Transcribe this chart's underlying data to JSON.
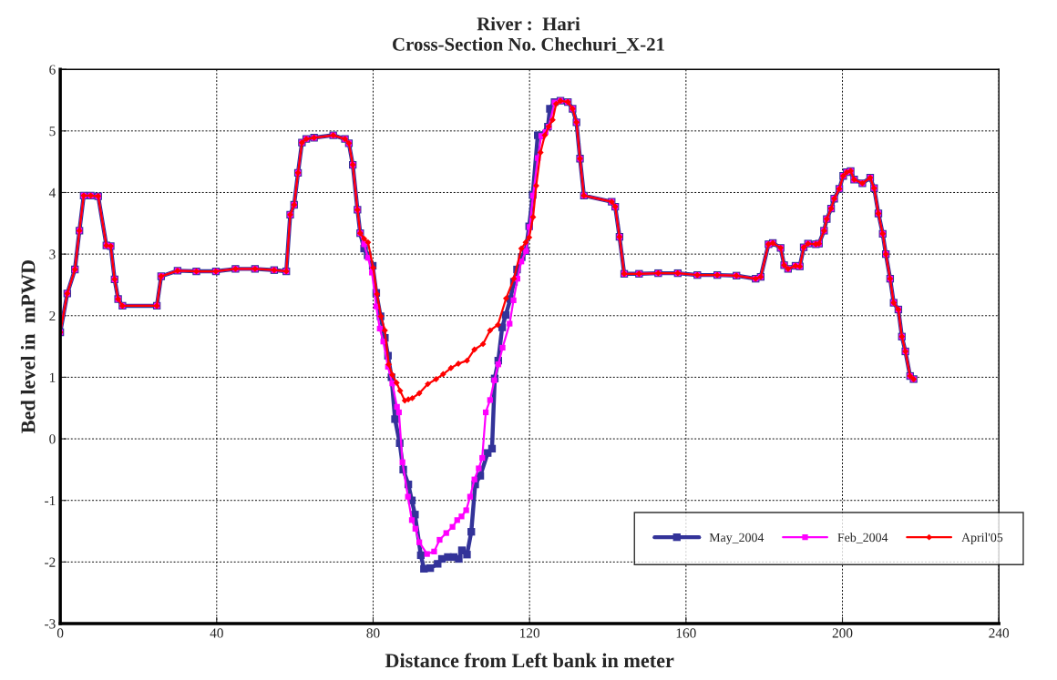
{
  "chart_data": {
    "type": "line",
    "title": "River :  Hari",
    "subtitle": "Cross-Section No. Chechuri_X-21",
    "xlabel": "Distance from Left bank in meter",
    "ylabel": "Bed level in  mPWD",
    "xlim": [
      0,
      240
    ],
    "xticks": [
      0,
      40,
      80,
      120,
      160,
      200,
      240
    ],
    "ylim": [
      -3,
      6
    ],
    "yticks": [
      -3,
      -2,
      -1,
      0,
      1,
      2,
      3,
      4,
      5,
      6
    ],
    "grid": true,
    "legend": "bottom right",
    "series": [
      {
        "name": "May_2004",
        "color": "#333399",
        "marker": "square",
        "x": [
          0,
          1.8,
          3.75,
          4.9,
          6.0,
          7.8,
          9.7,
          11.8,
          12.9,
          13.9,
          14.8,
          15.9,
          24.7,
          25.8,
          30.0,
          34.8,
          39.8,
          44.8,
          49.8,
          54.7,
          57.8,
          58.8,
          59.8,
          60.8,
          61.8,
          62.9,
          64.9,
          69.8,
          72.8,
          73.8,
          74.8,
          76.0,
          76.7,
          77.7,
          78.6,
          79.9,
          80.8,
          81.9,
          83.0,
          83.8,
          84.7,
          85.6,
          86.8,
          87.7,
          89.0,
          89.9,
          90.7,
          92.2,
          93.0,
          94.6,
          96.5,
          97.6,
          99.1,
          100.6,
          101.9,
          102.7,
          104.0,
          105.1,
          106.1,
          107.4,
          109.3,
          110.4,
          111.1,
          112.0,
          113.0,
          113.9,
          115.1,
          116.0,
          116.8,
          118.0,
          119.0,
          119.9,
          120.8,
          122.1,
          123.0,
          124.7,
          125.2,
          126.4,
          127.9,
          129.8,
          131.0,
          132.0,
          132.9,
          133.9,
          141.0,
          141.9,
          143.0,
          144.2,
          148.0,
          152.9,
          157.9,
          162.9,
          168.0,
          172.9,
          177.8,
          179.1,
          181.1,
          182.2,
          184.2,
          185.1,
          186.1,
          188.0,
          189.1,
          190.1,
          191.2,
          193.2,
          194.0,
          195.3,
          196.0,
          197.1,
          197.9,
          199.2,
          200.2,
          201.1,
          202.1,
          203.0,
          205.1,
          207.1,
          208.1,
          209.2,
          210.3,
          211.1,
          212.2,
          213.1,
          214.3,
          215.2,
          216.1,
          217.3,
          218.2
        ],
        "values": [
          1.73,
          2.36,
          2.75,
          3.38,
          3.95,
          3.95,
          3.94,
          3.14,
          3.13,
          2.59,
          2.27,
          2.16,
          2.16,
          2.64,
          2.73,
          2.72,
          2.72,
          2.76,
          2.76,
          2.74,
          2.72,
          3.64,
          3.8,
          4.32,
          4.81,
          4.87,
          4.89,
          4.93,
          4.87,
          4.8,
          4.45,
          3.72,
          3.34,
          3.09,
          2.98,
          2.81,
          2.37,
          1.99,
          1.64,
          1.35,
          1.0,
          0.32,
          -0.07,
          -0.5,
          -0.74,
          -1.0,
          -1.23,
          -1.89,
          -2.11,
          -2.1,
          -2.03,
          -1.95,
          -1.92,
          -1.92,
          -1.95,
          -1.81,
          -1.88,
          -1.51,
          -0.74,
          -0.6,
          -0.23,
          -0.16,
          0.98,
          1.27,
          1.81,
          2.01,
          2.27,
          2.55,
          2.75,
          2.95,
          3.05,
          3.45,
          3.96,
          4.93,
          4.93,
          5.07,
          5.36,
          5.47,
          5.49,
          5.47,
          5.36,
          5.14,
          4.55,
          3.95,
          3.85,
          3.77,
          3.28,
          2.68,
          2.68,
          2.69,
          2.69,
          2.66,
          2.66,
          2.65,
          2.6,
          2.63,
          3.16,
          3.18,
          3.1,
          2.82,
          2.76,
          2.81,
          2.8,
          3.11,
          3.17,
          3.16,
          3.17,
          3.38,
          3.57,
          3.74,
          3.9,
          4.06,
          4.27,
          4.33,
          4.35,
          4.21,
          4.15,
          4.24,
          4.07,
          3.66,
          3.33,
          3.0,
          2.6,
          2.21,
          2.1,
          1.66,
          1.42,
          1.02,
          0.97
        ]
      },
      {
        "name": "Feb_2004",
        "color": "#ff00ff",
        "marker": "square",
        "x": [
          0,
          1.8,
          3.75,
          4.9,
          6.0,
          7.8,
          9.7,
          11.8,
          12.9,
          13.9,
          14.8,
          15.9,
          24.7,
          25.8,
          30.0,
          34.8,
          39.8,
          44.8,
          49.8,
          54.7,
          57.8,
          58.8,
          59.8,
          60.8,
          61.8,
          62.9,
          64.9,
          69.8,
          72.8,
          73.8,
          74.8,
          76.0,
          76.7,
          77.7,
          78.7,
          79.7,
          80.8,
          81.7,
          82.6,
          83.8,
          84.9,
          86.1,
          86.6,
          87.5,
          88.9,
          89.9,
          90.8,
          91.8,
          93.8,
          95.6,
          97.0,
          98.7,
          100.3,
          101.5,
          102.6,
          103.8,
          104.8,
          105.9,
          107.0,
          107.9,
          108.8,
          109.9,
          111.0,
          112.0,
          113.1,
          114.9,
          115.9,
          116.9,
          117.9,
          119.1,
          120.0,
          120.9,
          122.1,
          123.0,
          124.1,
          124.9,
          126.4,
          127.9,
          129.8,
          131.0,
          132.0,
          132.9,
          133.9,
          141.0,
          141.9,
          143.0,
          144.2,
          148.0,
          152.9,
          157.9,
          162.9,
          168.0,
          172.9,
          177.8,
          179.1,
          181.1,
          182.2,
          184.2,
          185.1,
          186.1,
          188.0,
          189.1,
          190.1,
          191.2,
          193.2,
          194.0,
          195.3,
          196.0,
          197.1,
          197.9,
          199.2,
          200.2,
          201.1,
          202.1,
          203.0,
          205.1,
          207.1,
          208.1,
          209.2,
          210.3,
          211.1,
          212.2,
          213.1,
          214.3,
          215.2,
          216.1,
          217.3,
          218.2
        ],
        "values": [
          1.73,
          2.36,
          2.75,
          3.38,
          3.95,
          3.95,
          3.94,
          3.14,
          3.13,
          2.59,
          2.27,
          2.16,
          2.16,
          2.64,
          2.73,
          2.72,
          2.72,
          2.76,
          2.76,
          2.74,
          2.72,
          3.64,
          3.8,
          4.32,
          4.81,
          4.87,
          4.89,
          4.93,
          4.87,
          4.8,
          4.45,
          3.72,
          3.34,
          3.16,
          2.94,
          2.7,
          2.15,
          1.79,
          1.58,
          1.17,
          0.9,
          0.52,
          0.43,
          -0.38,
          -0.94,
          -1.32,
          -1.46,
          -1.68,
          -1.87,
          -1.83,
          -1.64,
          -1.53,
          -1.43,
          -1.32,
          -1.26,
          -1.16,
          -0.94,
          -0.66,
          -0.48,
          -0.31,
          0.43,
          0.63,
          0.95,
          1.21,
          1.48,
          1.87,
          2.25,
          2.6,
          2.88,
          3.05,
          3.44,
          3.95,
          4.56,
          4.92,
          4.98,
          5.07,
          5.46,
          5.49,
          5.47,
          5.36,
          5.14,
          4.55,
          3.95,
          3.85,
          3.77,
          3.28,
          2.68,
          2.68,
          2.69,
          2.69,
          2.66,
          2.66,
          2.65,
          2.6,
          2.63,
          3.16,
          3.18,
          3.1,
          2.82,
          2.76,
          2.81,
          2.8,
          3.11,
          3.17,
          3.16,
          3.17,
          3.38,
          3.57,
          3.74,
          3.9,
          4.06,
          4.27,
          4.33,
          4.35,
          4.21,
          4.15,
          4.24,
          4.07,
          3.66,
          3.33,
          3.0,
          2.6,
          2.21,
          2.1,
          1.66,
          1.42,
          1.02,
          0.97
        ]
      },
      {
        "name": "April'05",
        "color": "#ff0000",
        "marker": "diamond",
        "x": [
          0,
          1.8,
          3.75,
          4.9,
          6.0,
          7.8,
          9.7,
          11.8,
          12.9,
          13.9,
          14.8,
          15.9,
          24.7,
          25.8,
          30.0,
          34.8,
          39.8,
          44.8,
          49.8,
          54.7,
          57.8,
          58.8,
          59.8,
          60.8,
          61.8,
          62.9,
          64.9,
          69.8,
          72.8,
          73.8,
          74.8,
          76.0,
          76.7,
          77.7,
          78.7,
          80.0,
          81.0,
          82.0,
          83.0,
          84.0,
          84.9,
          86.0,
          86.9,
          88.1,
          89.0,
          90.0,
          91.8,
          94.0,
          96.1,
          97.9,
          99.9,
          101.8,
          104.0,
          105.9,
          108.1,
          109.9,
          111.9,
          114.0,
          116.0,
          117.9,
          119.0,
          119.9,
          120.9,
          121.7,
          122.8,
          123.9,
          124.9,
          125.9,
          126.8,
          127.9,
          129.8,
          131.0,
          132.0,
          132.9,
          133.9,
          141.0,
          141.9,
          143.0,
          144.2,
          148.0,
          152.9,
          157.9,
          162.9,
          168.0,
          172.9,
          177.8,
          179.1,
          181.1,
          182.2,
          184.2,
          185.1,
          186.1,
          188.0,
          189.1,
          190.1,
          191.2,
          193.2,
          194.0,
          195.3,
          196.0,
          197.1,
          197.9,
          199.2,
          200.2,
          201.1,
          202.1,
          203.0,
          205.1,
          207.1,
          208.1,
          209.2,
          210.3,
          211.1,
          212.2,
          213.1,
          214.3,
          215.2,
          216.1,
          217.3,
          218.2
        ],
        "values": [
          1.73,
          2.36,
          2.75,
          3.38,
          3.95,
          3.95,
          3.94,
          3.14,
          3.13,
          2.59,
          2.27,
          2.16,
          2.16,
          2.64,
          2.73,
          2.72,
          2.72,
          2.76,
          2.76,
          2.74,
          2.72,
          3.64,
          3.8,
          4.32,
          4.81,
          4.87,
          4.89,
          4.93,
          4.87,
          4.8,
          4.45,
          3.72,
          3.34,
          3.25,
          3.19,
          2.78,
          2.35,
          1.99,
          1.76,
          1.21,
          1.04,
          0.91,
          0.78,
          0.62,
          0.64,
          0.66,
          0.74,
          0.89,
          0.97,
          1.05,
          1.15,
          1.22,
          1.27,
          1.45,
          1.54,
          1.76,
          1.85,
          2.28,
          2.6,
          3.09,
          3.19,
          3.27,
          3.6,
          4.11,
          4.65,
          4.93,
          5.07,
          5.18,
          5.44,
          5.49,
          5.47,
          5.36,
          5.14,
          4.55,
          3.95,
          3.85,
          3.77,
          3.28,
          2.68,
          2.68,
          2.69,
          2.69,
          2.66,
          2.66,
          2.65,
          2.6,
          2.63,
          3.16,
          3.18,
          3.1,
          2.82,
          2.76,
          2.81,
          2.8,
          3.11,
          3.17,
          3.16,
          3.17,
          3.38,
          3.57,
          3.74,
          3.9,
          4.06,
          4.27,
          4.33,
          4.35,
          4.21,
          4.15,
          4.24,
          4.07,
          3.66,
          3.33,
          3.0,
          2.6,
          2.21,
          2.1,
          1.66,
          1.42,
          1.02,
          0.97
        ]
      }
    ]
  }
}
